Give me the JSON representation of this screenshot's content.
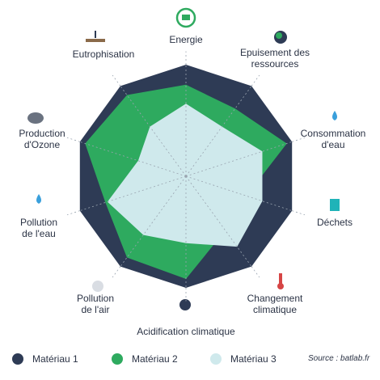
{
  "chart_data": {
    "type": "radar",
    "categories": [
      "Energie",
      "Epuisement des ressources",
      "Consommation d'eau",
      "Déchets",
      "Changement climatique",
      "Acidification climatique",
      "Pollution de l'air",
      "Pollution de l'eau",
      "Production d'Ozone",
      "Eutrophisation"
    ],
    "rlim": [
      0,
      100
    ],
    "series": [
      {
        "name": "Matériau 1",
        "color": "#2e3b55",
        "values": [
          100,
          100,
          100,
          100,
          100,
          100,
          100,
          100,
          100,
          100
        ]
      },
      {
        "name": "Matériau 2",
        "color": "#2eaa5f",
        "values": [
          82,
          75,
          95,
          57,
          60,
          92,
          90,
          76,
          95,
          90
        ]
      },
      {
        "name": "Matériau 3",
        "color": "#cfe9ec",
        "values": [
          65,
          55,
          72,
          72,
          78,
          60,
          65,
          74,
          45,
          55
        ]
      }
    ],
    "source": "Source : batlab.fr"
  }
}
